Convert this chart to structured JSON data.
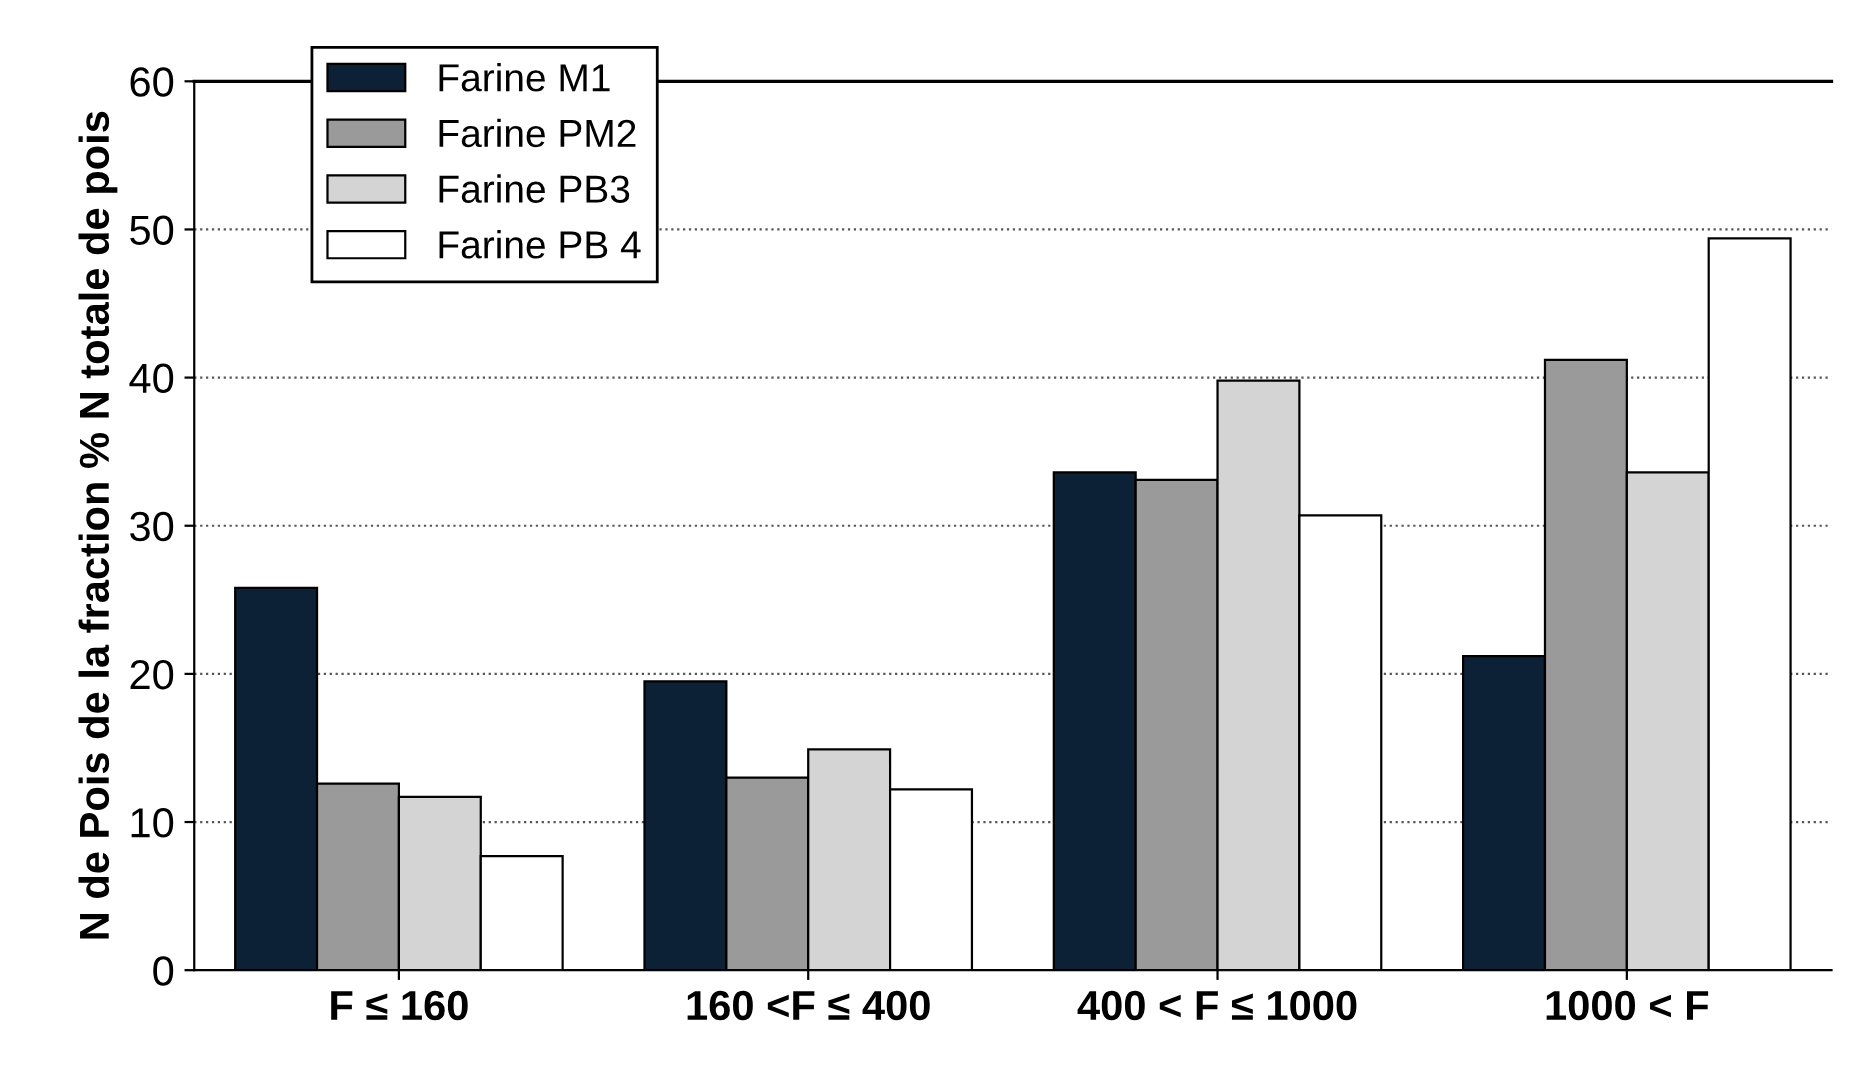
{
  "chart_data": {
    "type": "bar",
    "ylabel": "N de Pois de la fraction % N totale de pois",
    "categories": [
      "F ≤ 160",
      "160 <F ≤ 400",
      "400 < F ≤ 1000",
      "1000 < F"
    ],
    "series": [
      {
        "name": "Farine M1",
        "color": "#0d2136",
        "values": [
          25.8,
          19.5,
          33.6,
          21.2
        ]
      },
      {
        "name": "Farine PM2",
        "color": "#9a9a9a",
        "values": [
          12.6,
          13.0,
          33.1,
          41.2
        ]
      },
      {
        "name": "Farine PB3",
        "color": "#d4d4d4",
        "values": [
          11.7,
          14.9,
          39.8,
          33.6
        ]
      },
      {
        "name": "Farine PB 4",
        "color": "#ffffff",
        "values": [
          7.7,
          12.2,
          30.7,
          49.4
        ]
      }
    ],
    "ylim": [
      0,
      60
    ],
    "yticks": [
      0,
      10,
      20,
      30,
      40,
      50,
      60
    ],
    "grid": "y",
    "legend": "top left"
  }
}
